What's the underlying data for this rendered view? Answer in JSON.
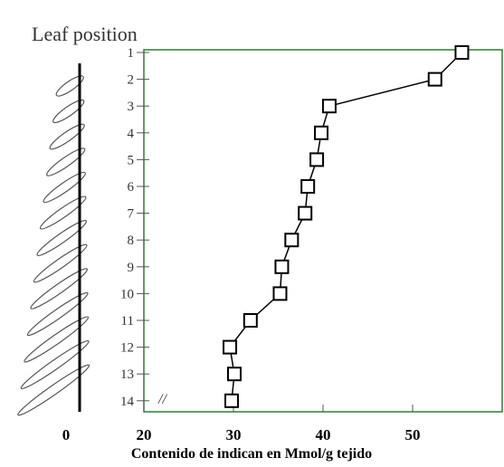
{
  "chart_data": {
    "type": "line",
    "orientation": "horizontal",
    "y_axis_title": "Leaf position",
    "x_axis_title": "Contenido de indican en Mmol/g tejido",
    "categories": [
      "1",
      "2",
      "3",
      "4",
      "5",
      "6",
      "7",
      "8",
      "9",
      "10",
      "11",
      "12",
      "13",
      "14"
    ],
    "series": [
      {
        "color": "#000000",
        "values": [
          55.5,
          52.5,
          40.7,
          39.8,
          39.3,
          38.3,
          38.0,
          36.5,
          35.4,
          35.2,
          31.9,
          29.6,
          30.1,
          29.8
        ]
      }
    ],
    "xlim": [
      0,
      60
    ],
    "xticks": [
      0,
      20,
      30,
      40,
      50
    ],
    "axis_break": true,
    "frame_color": "#2e7d32"
  }
}
